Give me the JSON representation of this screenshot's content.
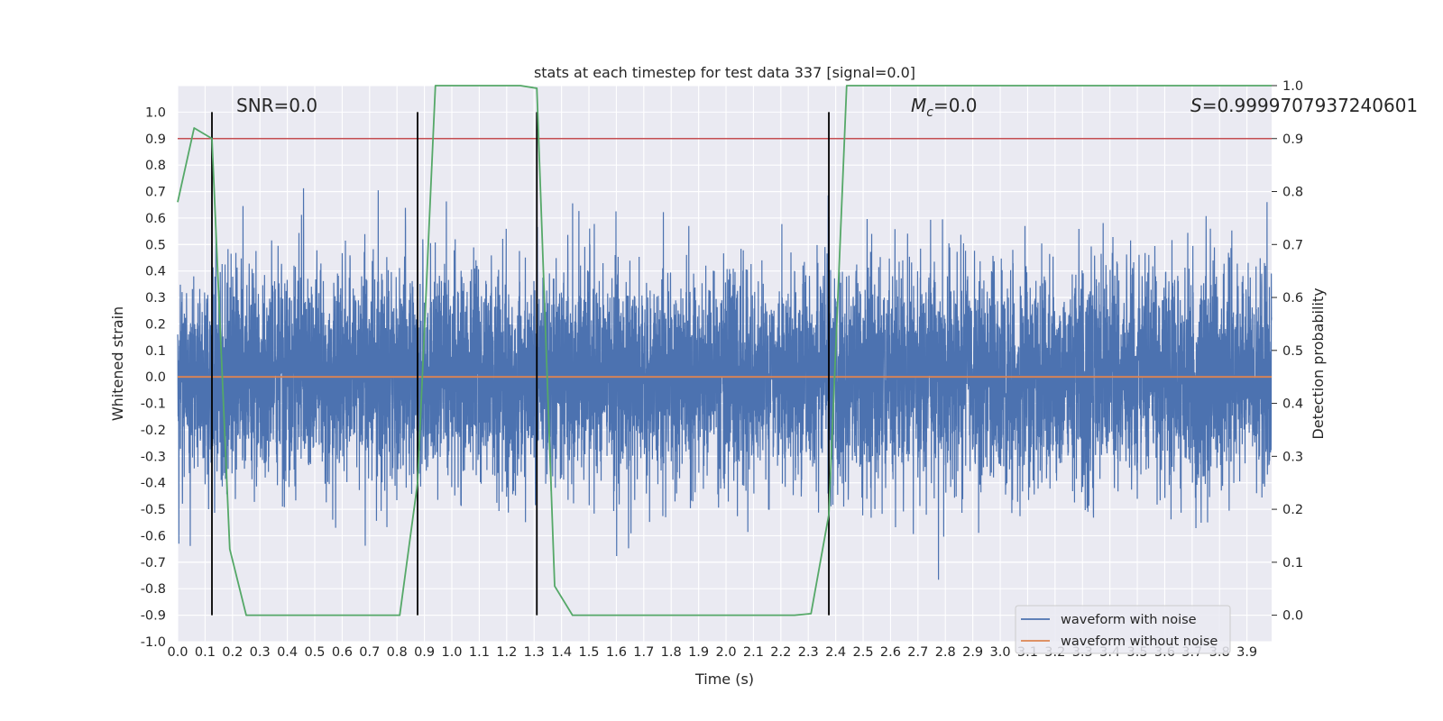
{
  "chart_data": {
    "type": "line",
    "title": "stats at each timestep for test data 337 [signal=0.0]",
    "xlabel": "Time (s)",
    "ylabel_left": "Whitened strain",
    "ylabel_right": "Detection probability",
    "xlim": [
      0.0,
      3.99
    ],
    "ylim_left": [
      -1.0,
      1.1
    ],
    "ylim_right": [
      -0.05,
      1.0
    ],
    "x_ticks": [
      "0.0",
      "0.1",
      "0.2",
      "0.3",
      "0.4",
      "0.5",
      "0.6",
      "0.7",
      "0.8",
      "0.9",
      "1.0",
      "1.1",
      "1.2",
      "1.3",
      "1.4",
      "1.5",
      "1.6",
      "1.7",
      "1.8",
      "1.9",
      "2.0",
      "2.1",
      "2.2",
      "2.3",
      "2.4",
      "2.5",
      "2.6",
      "2.7",
      "2.8",
      "2.9",
      "3.0",
      "3.1",
      "3.2",
      "3.3",
      "3.4",
      "3.5",
      "3.6",
      "3.7",
      "3.8",
      "3.9"
    ],
    "y_ticks_left": [
      "-1.0",
      "-0.9",
      "-0.8",
      "-0.7",
      "-0.6",
      "-0.5",
      "-0.4",
      "-0.3",
      "-0.2",
      "-0.1",
      "0.0",
      "0.1",
      "0.2",
      "0.3",
      "0.4",
      "0.5",
      "0.6",
      "0.7",
      "0.8",
      "0.9",
      "1.0"
    ],
    "y_ticks_right": [
      "0.0",
      "0.1",
      "0.2",
      "0.3",
      "0.4",
      "0.5",
      "0.6",
      "0.7",
      "0.8",
      "0.9",
      "1.0"
    ],
    "grid": true,
    "annotations": {
      "snr": "SNR=0.0",
      "mc_symbol": "M",
      "mc_sub": "c",
      "mc_value": "=0.0",
      "s_symbol": "S",
      "s_value": "=0.9999707937240601"
    },
    "series": [
      {
        "name": "waveform with noise",
        "color": "#4c72b0",
        "kind": "noise",
        "sample_rate_hz": 2048,
        "amplitude_envelope": {
          "min": -0.87,
          "max": 1.0
        },
        "note": "whitened noise trace, mostly within +/-0.4 with spikes"
      },
      {
        "name": "waveform without noise",
        "color": "#dd8452",
        "x": [
          0.0,
          3.99
        ],
        "y": [
          0.0,
          0.0
        ]
      },
      {
        "name": "detection probability",
        "color": "#55a868",
        "axis": "right",
        "x": [
          0.0,
          0.06,
          0.125,
          0.19,
          0.25,
          0.81,
          0.875,
          0.94,
          1.25,
          1.31,
          1.375,
          1.44,
          2.25,
          2.31,
          2.375,
          2.44,
          3.99
        ],
        "y": [
          0.78,
          0.92,
          0.9,
          0.125,
          0.0,
          0.0,
          0.25,
          1.0,
          1.0,
          0.995,
          0.055,
          0.0,
          0.0,
          0.003,
          0.19,
          1.0,
          1.0
        ]
      }
    ],
    "threshold_line": {
      "axis": "right",
      "value": 0.9,
      "color": "#c44e52"
    },
    "vertical_markers": {
      "x": [
        0.125,
        0.875,
        1.31,
        2.375
      ],
      "ymin": -0.9,
      "ymax": 1.0,
      "color": "#000000"
    },
    "legend": {
      "position": "lower-right",
      "entries": [
        {
          "label": "waveform with noise",
          "color": "#4c72b0"
        },
        {
          "label": "waveform without noise",
          "color": "#dd8452"
        }
      ]
    }
  }
}
